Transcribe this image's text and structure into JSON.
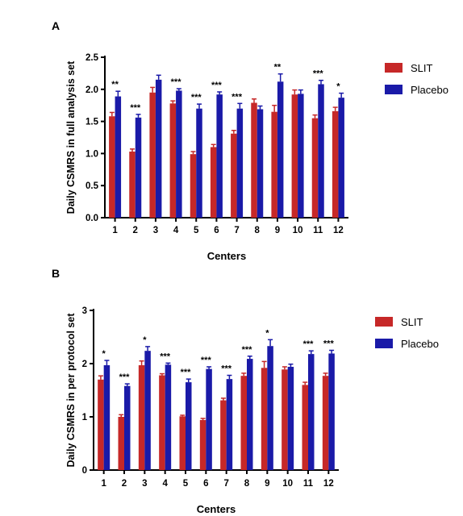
{
  "chart_data": [
    {
      "type": "bar",
      "panel": "A",
      "ylabel": "Daily CSMRS in full analysis set",
      "xlabel": "Centers",
      "ylim": [
        0,
        2.5
      ],
      "yticks": [
        "0.0",
        "0.5",
        "1.0",
        "1.5",
        "2.0",
        "2.5"
      ],
      "categories": [
        "1",
        "2",
        "3",
        "4",
        "5",
        "6",
        "7",
        "8",
        "9",
        "10",
        "11",
        "12"
      ],
      "series": [
        {
          "name": "SLIT",
          "color": "#c62828",
          "values": [
            1.58,
            1.03,
            1.95,
            1.78,
            0.99,
            1.1,
            1.31,
            1.79,
            1.65,
            1.92,
            1.55,
            1.66
          ],
          "errors": [
            0.06,
            0.04,
            0.08,
            0.04,
            0.04,
            0.04,
            0.05,
            0.06,
            0.1,
            0.07,
            0.05,
            0.06
          ]
        },
        {
          "name": "Placebo",
          "color": "#1a1aa8",
          "values": [
            1.89,
            1.56,
            2.15,
            1.98,
            1.7,
            1.92,
            1.7,
            1.69,
            2.12,
            1.93,
            2.08,
            1.87
          ],
          "errors": [
            0.08,
            0.05,
            0.07,
            0.03,
            0.07,
            0.04,
            0.08,
            0.05,
            0.12,
            0.06,
            0.06,
            0.07
          ]
        }
      ],
      "significance": [
        "**",
        "***",
        "",
        "***",
        "***",
        "***",
        "***",
        "",
        "**",
        "",
        "***",
        "*"
      ]
    },
    {
      "type": "bar",
      "panel": "B",
      "ylabel": "Daily CSMRS in per protocol set",
      "xlabel": "Centers",
      "ylim": [
        0,
        3
      ],
      "yticks": [
        "0",
        "1",
        "2",
        "3"
      ],
      "categories": [
        "1",
        "2",
        "3",
        "4",
        "5",
        "6",
        "7",
        "8",
        "9",
        "10",
        "11",
        "12"
      ],
      "series": [
        {
          "name": "SLIT",
          "color": "#c62828",
          "values": [
            1.7,
            1.0,
            1.97,
            1.78,
            1.01,
            0.94,
            1.31,
            1.77,
            1.92,
            1.89,
            1.6,
            1.77
          ],
          "errors": [
            0.07,
            0.04,
            0.08,
            0.03,
            0.02,
            0.03,
            0.04,
            0.05,
            0.12,
            0.05,
            0.05,
            0.05
          ]
        },
        {
          "name": "Placebo",
          "color": "#1a1aa8",
          "values": [
            1.97,
            1.58,
            2.24,
            1.98,
            1.65,
            1.9,
            1.71,
            2.09,
            2.33,
            1.94,
            2.18,
            2.19
          ],
          "errors": [
            0.09,
            0.04,
            0.08,
            0.03,
            0.06,
            0.04,
            0.07,
            0.05,
            0.12,
            0.05,
            0.06,
            0.06
          ]
        }
      ],
      "significance": [
        "*",
        "***",
        "*",
        "***",
        "***",
        "***",
        "***",
        "***",
        "*",
        "",
        "***",
        "***"
      ]
    }
  ]
}
